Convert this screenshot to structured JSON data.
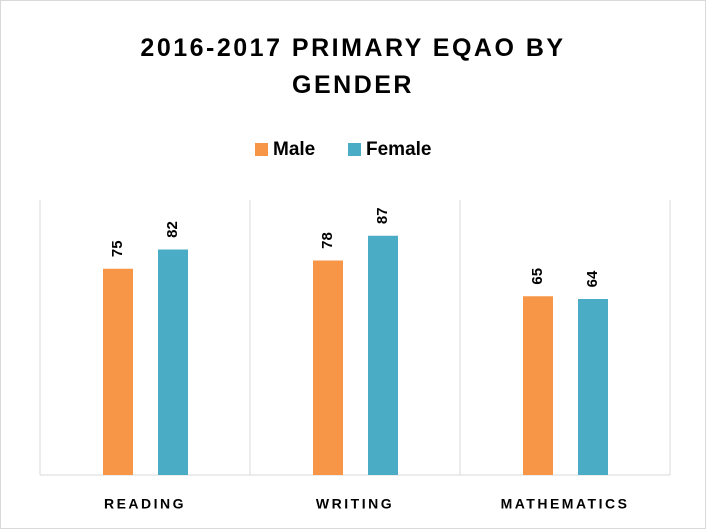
{
  "chart_data": {
    "type": "bar",
    "title": "2016-2017 PRIMARY EQAO BY GENDER",
    "categories": [
      "READING",
      "WRITING",
      "MATHEMATICS"
    ],
    "series": [
      {
        "name": "Male",
        "color": "#f79646",
        "values": [
          75,
          78,
          65
        ]
      },
      {
        "name": "Female",
        "color": "#4bacc6",
        "values": [
          82,
          87,
          64
        ]
      }
    ],
    "ylim": [
      0,
      100
    ],
    "legend": "top"
  }
}
